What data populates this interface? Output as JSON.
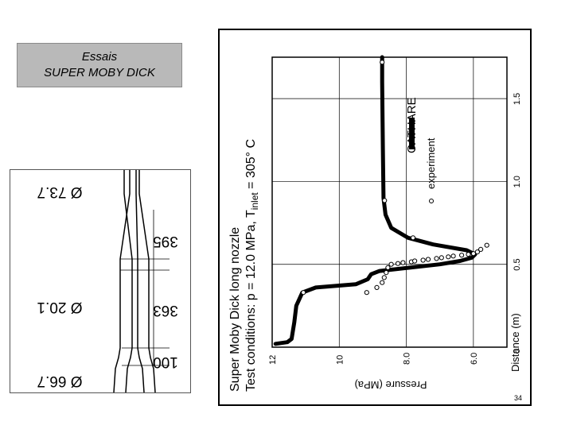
{
  "slide": {
    "title_line1": "Essais",
    "title_line2": "SUPER MOBY DICK",
    "page_number": "34"
  },
  "drawing": {
    "labels": [
      "Ø 73.7",
      "395",
      "Ø 20.1",
      "363",
      "100",
      "Ø 66.7"
    ]
  },
  "chart_data": {
    "type": "line",
    "title_line1": "Super Moby Dick long nozzle",
    "title_line2": "Test conditions: p = 12.0 MPa, T",
    "title_sub": "inlet",
    "title_end": " = 305° C",
    "xlabel": "Distance (m)",
    "ylabel": "Pressure (MPa)",
    "xlim": [
      0,
      1.75
    ],
    "ylim": [
      12,
      5
    ],
    "x_ticks": [
      {
        "v": 0,
        "label": "0"
      },
      {
        "v": 0.5,
        "label": "0.5"
      },
      {
        "v": 1.0,
        "label": "1.0"
      },
      {
        "v": 1.5,
        "label": "1.5"
      }
    ],
    "y_ticks": [
      {
        "v": 12,
        "label": "12"
      },
      {
        "v": 10,
        "label": "10"
      },
      {
        "v": 8,
        "label": "8.0"
      },
      {
        "v": 6,
        "label": "6.0"
      }
    ],
    "grid": true,
    "legend_position": "upper-right",
    "series": [
      {
        "name": "CATHARE",
        "style": "thick-line",
        "points": [
          [
            0.02,
            11.9
          ],
          [
            0.03,
            11.55
          ],
          [
            0.05,
            11.42
          ],
          [
            0.15,
            11.34
          ],
          [
            0.25,
            11.28
          ],
          [
            0.33,
            11.1
          ],
          [
            0.36,
            10.7
          ],
          [
            0.38,
            9.5
          ],
          [
            0.41,
            9.15
          ],
          [
            0.44,
            9.05
          ],
          [
            0.46,
            8.8
          ],
          [
            0.48,
            7.9
          ],
          [
            0.5,
            7.0
          ],
          [
            0.52,
            6.4
          ],
          [
            0.54,
            6.05
          ],
          [
            0.56,
            5.95
          ],
          [
            0.585,
            6.2
          ],
          [
            0.62,
            7.2
          ],
          [
            0.66,
            7.95
          ],
          [
            0.72,
            8.45
          ],
          [
            0.8,
            8.62
          ],
          [
            0.9,
            8.68
          ],
          [
            1.2,
            8.7
          ],
          [
            1.6,
            8.72
          ],
          [
            1.75,
            8.72
          ]
        ]
      },
      {
        "name": "experiment",
        "style": "open-circles",
        "points": [
          [
            0.33,
            11.07
          ],
          [
            0.33,
            9.18
          ],
          [
            0.36,
            8.88
          ],
          [
            0.39,
            8.72
          ],
          [
            0.42,
            8.66
          ],
          [
            0.45,
            8.6
          ],
          [
            0.48,
            8.55
          ],
          [
            0.5,
            8.45
          ],
          [
            0.505,
            8.25
          ],
          [
            0.51,
            8.1
          ],
          [
            0.515,
            7.85
          ],
          [
            0.52,
            7.75
          ],
          [
            0.525,
            7.5
          ],
          [
            0.53,
            7.35
          ],
          [
            0.535,
            7.1
          ],
          [
            0.54,
            6.95
          ],
          [
            0.545,
            6.75
          ],
          [
            0.55,
            6.6
          ],
          [
            0.555,
            6.35
          ],
          [
            0.56,
            6.15
          ],
          [
            0.565,
            6.0
          ],
          [
            0.575,
            5.88
          ],
          [
            0.59,
            5.78
          ],
          [
            0.615,
            5.6
          ],
          [
            0.66,
            7.8
          ],
          [
            0.885,
            8.65
          ],
          [
            1.72,
            8.72
          ]
        ]
      }
    ],
    "legend": [
      "CATHARE",
      "experiment"
    ]
  }
}
